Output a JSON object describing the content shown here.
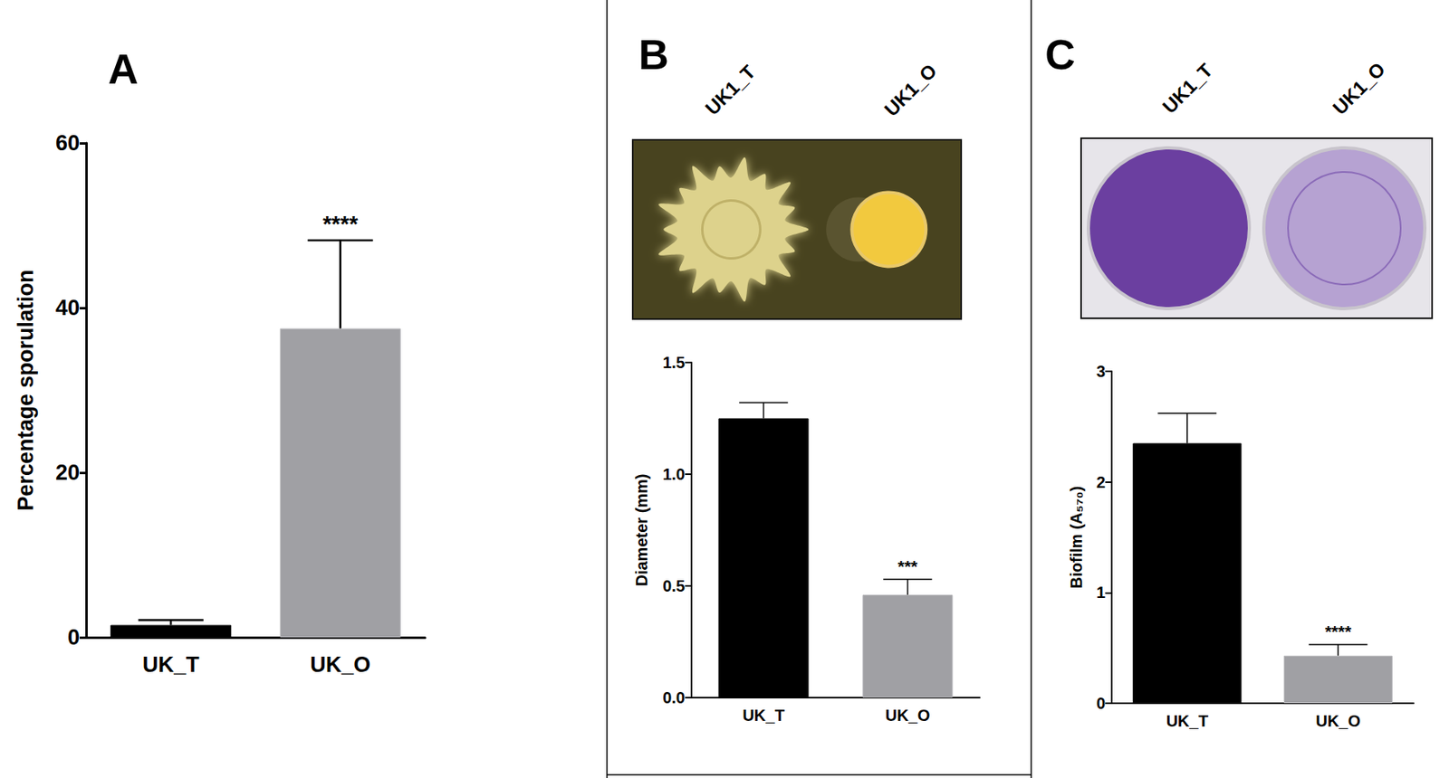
{
  "chart_data": [
    {
      "type": "bar",
      "title": "A",
      "categories": [
        "UK_T",
        "UK_O"
      ],
      "values": [
        1.5,
        37.5
      ],
      "errors": [
        0.6,
        10.7
      ],
      "colors": [
        "#000000",
        "#a0a0a4"
      ],
      "y_label": "Percentage sporulation",
      "ylim": [
        0,
        60
      ],
      "yticks": [
        0,
        20,
        40,
        60
      ],
      "grid": false,
      "annotations": [
        {
          "category": "UK_O",
          "text": "****"
        }
      ]
    },
    {
      "type": "bar",
      "title": "B",
      "image_labels": [
        "UK1_T",
        "UK1_O"
      ],
      "categories": [
        "UK_T",
        "UK_O"
      ],
      "values": [
        1.25,
        0.46
      ],
      "errors": [
        0.07,
        0.07
      ],
      "colors": [
        "#000000",
        "#a0a0a4"
      ],
      "y_label": "Diameter (mm)",
      "ylim": [
        0,
        1.5
      ],
      "yticks": [
        {
          "value": 0,
          "label": "0.0"
        },
        {
          "value": 0.5,
          "label": "0.5"
        },
        {
          "value": 1,
          "label": "1.0"
        },
        {
          "value": 1.5,
          "label": "1.5"
        }
      ],
      "grid": false,
      "annotations": [
        {
          "category": "UK_O",
          "text": "***"
        }
      ]
    },
    {
      "type": "bar",
      "title": "C",
      "image_labels": [
        "UK1_T",
        "UK1_O"
      ],
      "categories": [
        "UK_T",
        "UK_O"
      ],
      "values": [
        2.35,
        0.43
      ],
      "errors": [
        0.27,
        0.1
      ],
      "colors": [
        "#000000",
        "#a0a0a4"
      ],
      "y_label": "Biofilm (A₅₇₀)",
      "ylim": [
        0,
        3
      ],
      "yticks": [
        0,
        1,
        2,
        3
      ],
      "grid": false,
      "annotations": [
        {
          "category": "UK_O",
          "text": "****"
        }
      ]
    }
  ]
}
